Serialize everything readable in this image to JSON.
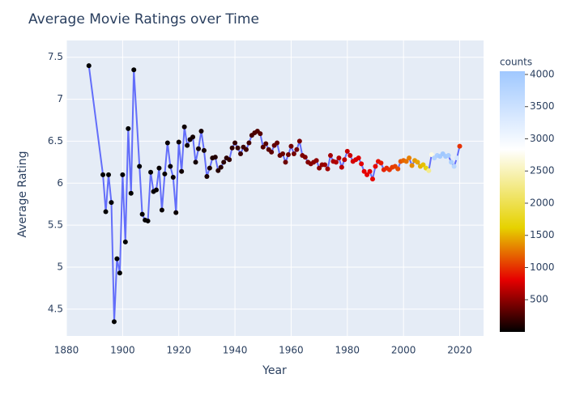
{
  "chart_data": {
    "type": "line",
    "title": "Average Movie Ratings over Time",
    "x_label": "Year",
    "y_label": "Average Rating",
    "x": [
      1888,
      1893,
      1894,
      1895,
      1896,
      1897,
      1898,
      1899,
      1900,
      1901,
      1902,
      1903,
      1904,
      1906,
      1907,
      1908,
      1909,
      1910,
      1911,
      1912,
      1913,
      1914,
      1915,
      1916,
      1917,
      1918,
      1919,
      1920,
      1921,
      1922,
      1923,
      1924,
      1925,
      1926,
      1927,
      1928,
      1929,
      1930,
      1931,
      1932,
      1933,
      1934,
      1935,
      1936,
      1937,
      1938,
      1939,
      1940,
      1941,
      1942,
      1943,
      1944,
      1945,
      1946,
      1947,
      1948,
      1949,
      1950,
      1951,
      1952,
      1953,
      1954,
      1955,
      1956,
      1957,
      1958,
      1959,
      1960,
      1961,
      1962,
      1963,
      1964,
      1965,
      1966,
      1967,
      1968,
      1969,
      1970,
      1971,
      1972,
      1973,
      1974,
      1975,
      1976,
      1977,
      1978,
      1979,
      1980,
      1981,
      1982,
      1983,
      1984,
      1985,
      1986,
      1987,
      1988,
      1989,
      1990,
      1991,
      1992,
      1993,
      1994,
      1995,
      1996,
      1997,
      1998,
      1999,
      2000,
      2001,
      2002,
      2003,
      2004,
      2005,
      2006,
      2007,
      2008,
      2009,
      2010,
      2011,
      2012,
      2013,
      2014,
      2015,
      2016,
      2017,
      2018,
      2019,
      2020
    ],
    "values": [
      7.4,
      6.1,
      5.66,
      6.1,
      5.77,
      4.35,
      5.1,
      4.93,
      6.1,
      5.3,
      6.65,
      5.88,
      7.35,
      6.2,
      5.63,
      5.56,
      5.55,
      6.13,
      5.9,
      5.92,
      6.18,
      5.68,
      6.11,
      6.48,
      6.2,
      6.07,
      5.65,
      6.49,
      6.14,
      6.67,
      6.45,
      6.52,
      6.55,
      6.25,
      6.41,
      6.62,
      6.39,
      6.08,
      6.18,
      6.3,
      6.31,
      6.15,
      6.19,
      6.25,
      6.3,
      6.28,
      6.42,
      6.48,
      6.42,
      6.35,
      6.43,
      6.4,
      6.48,
      6.57,
      6.6,
      6.62,
      6.59,
      6.43,
      6.47,
      6.4,
      6.37,
      6.45,
      6.48,
      6.33,
      6.35,
      6.25,
      6.34,
      6.44,
      6.35,
      6.4,
      6.5,
      6.33,
      6.31,
      6.25,
      6.23,
      6.25,
      6.27,
      6.18,
      6.22,
      6.22,
      6.17,
      6.33,
      6.26,
      6.25,
      6.3,
      6.19,
      6.28,
      6.38,
      6.33,
      6.26,
      6.28,
      6.3,
      6.23,
      6.14,
      6.1,
      6.14,
      6.05,
      6.2,
      6.26,
      6.24,
      6.16,
      6.18,
      6.16,
      6.19,
      6.2,
      6.17,
      6.26,
      6.27,
      6.26,
      6.3,
      6.21,
      6.27,
      6.25,
      6.2,
      6.22,
      6.18,
      6.15,
      6.34,
      6.3,
      6.33,
      6.32,
      6.35,
      6.32,
      6.33,
      6.25,
      6.2,
      6.3,
      6.44
    ],
    "counts": [
      1,
      2,
      3,
      2,
      4,
      3,
      5,
      4,
      6,
      5,
      7,
      6,
      8,
      10,
      12,
      14,
      16,
      18,
      20,
      22,
      25,
      28,
      30,
      33,
      36,
      40,
      43,
      46,
      50,
      53,
      56,
      60,
      63,
      66,
      70,
      73,
      76,
      80,
      100,
      110,
      120,
      130,
      140,
      150,
      160,
      170,
      180,
      190,
      200,
      210,
      220,
      230,
      240,
      250,
      270,
      285,
      300,
      300,
      310,
      320,
      330,
      340,
      350,
      360,
      370,
      380,
      390,
      400,
      410,
      420,
      430,
      440,
      450,
      460,
      470,
      480,
      500,
      500,
      520,
      540,
      560,
      580,
      600,
      620,
      640,
      660,
      680,
      700,
      720,
      740,
      760,
      780,
      800,
      810,
      820,
      830,
      850,
      850,
      880,
      910,
      940,
      970,
      1000,
      1030,
      1060,
      1100,
      1150,
      1200,
      1250,
      1300,
      1350,
      1400,
      1450,
      1500,
      1550,
      1700,
      2300,
      2700,
      3800,
      3900,
      4000,
      4050,
      4000,
      3950,
      3900,
      3750,
      3400,
      1000
    ],
    "line_color": "#636efa",
    "colorbar_title": "counts",
    "clim": [
      0,
      4050
    ],
    "cticks": [
      500,
      1000,
      1500,
      2000,
      2500,
      3000,
      3500,
      4000
    ],
    "colorscale": [
      [
        0,
        "#000000"
      ],
      [
        0.2,
        "#e60000"
      ],
      [
        0.4,
        "#e6d200"
      ],
      [
        0.7,
        "#ffffff"
      ],
      [
        1,
        "#a0c8ff"
      ]
    ],
    "xlim": [
      1880,
      2028.5
    ],
    "xticks": [
      1880,
      1900,
      1920,
      1940,
      1960,
      1980,
      2000,
      2020
    ],
    "ylim": [
      4.18,
      7.7
    ],
    "yticks": [
      4.5,
      5,
      5.5,
      6,
      6.5,
      7,
      7.5
    ],
    "grid": true
  }
}
